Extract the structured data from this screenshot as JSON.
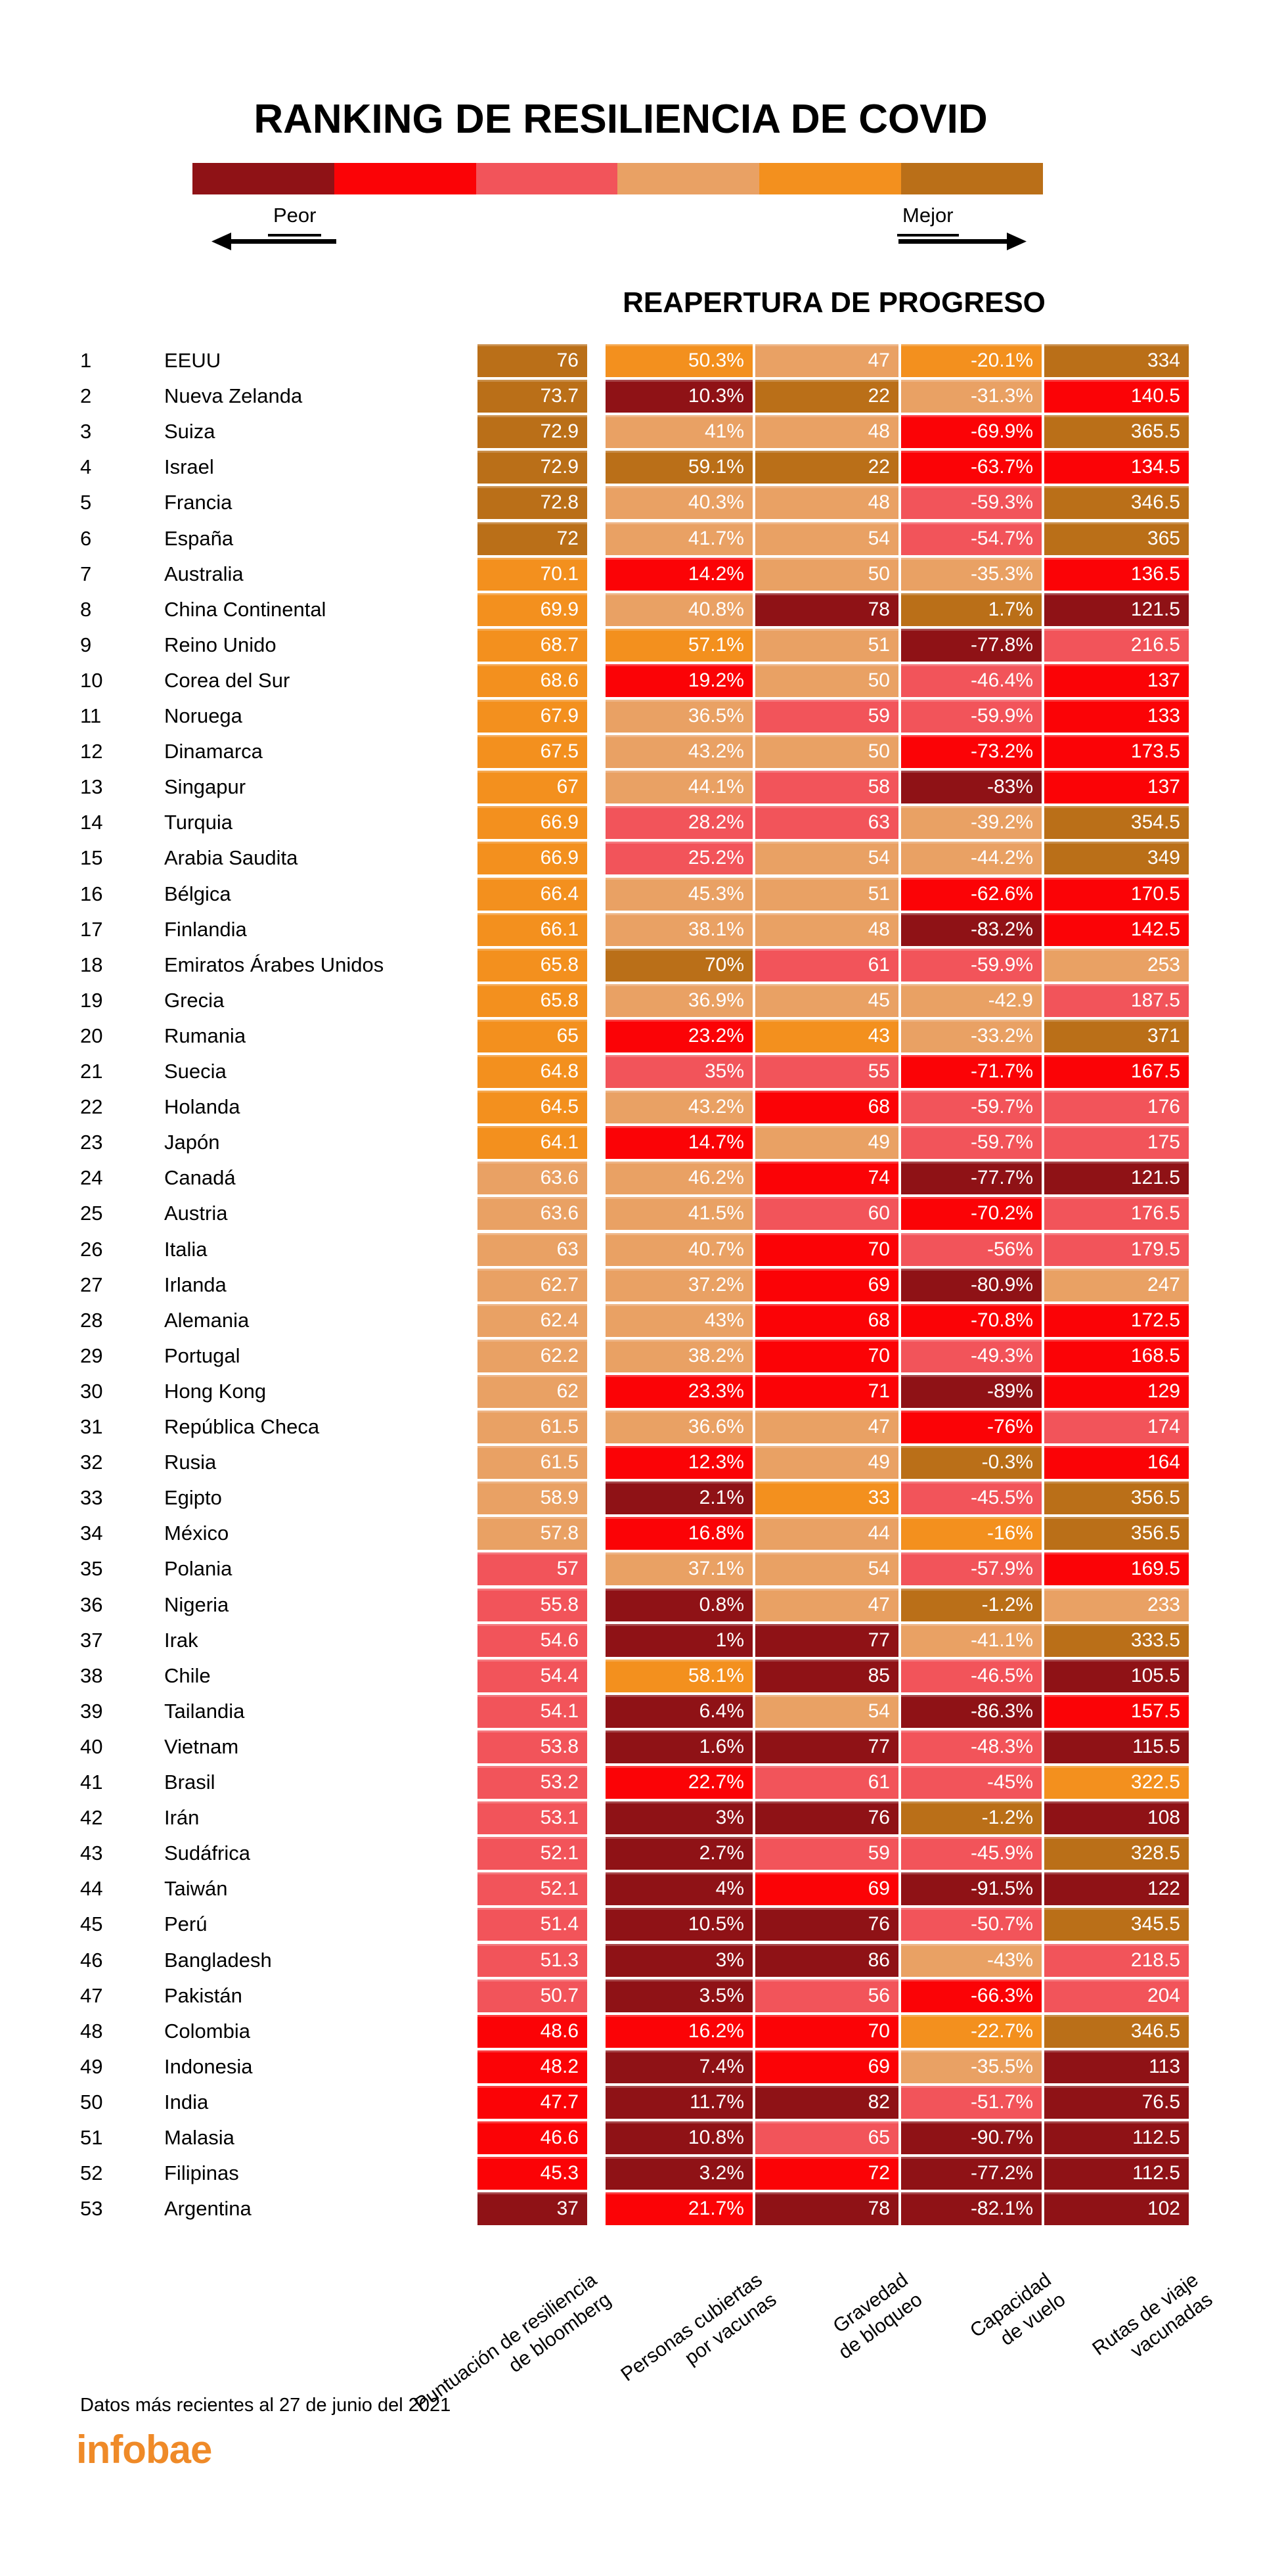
{
  "title": "RANKING DE RESILIENCIA DE COVID",
  "legend": {
    "worst_label": "Peor",
    "best_label": "Mejor"
  },
  "section_header": "REAPERTURA DE PROGRESO",
  "footer": {
    "note": "Datos más recientes al 27 de junio del 2021",
    "brand": "infobae",
    "brand_color": "#EF8A28"
  },
  "chart_data": {
    "type": "heatmap",
    "title": "RANKING DE RESILIENCIA DE COVID",
    "subtitle": "REAPERTURA DE PROGRESO",
    "palette": [
      "#8F1216",
      "#FB0306",
      "#F2545A",
      "#E9A164",
      "#F3901E",
      "#BA6F18"
    ],
    "palette_meaning": "index 0 = Peor (worst) … index 5 = Mejor (best)",
    "columns": [
      [
        "Puntuación de resiliencia",
        "de bloomberg"
      ],
      [
        "Personas cubiertas",
        "por vacunas"
      ],
      [
        "Gravedad",
        "de bloqueo"
      ],
      [
        "Capacidad",
        "de vuelo"
      ],
      [
        "Rutas de viaje",
        "vacunadas"
      ]
    ],
    "rows": [
      {
        "rank": "1",
        "country": "EEUU",
        "values": [
          "76",
          "50.3%",
          "47",
          "-20.1%",
          "334"
        ],
        "colors": [
          5,
          4,
          3,
          4,
          5
        ]
      },
      {
        "rank": "2",
        "country": "Nueva Zelanda",
        "values": [
          "73.7",
          "10.3%",
          "22",
          "-31.3%",
          "140.5"
        ],
        "colors": [
          5,
          0,
          5,
          3,
          1
        ]
      },
      {
        "rank": "3",
        "country": "Suiza",
        "values": [
          "72.9",
          "41%",
          "48",
          "-69.9%",
          "365.5"
        ],
        "colors": [
          5,
          3,
          3,
          1,
          5
        ]
      },
      {
        "rank": "4",
        "country": "Israel",
        "values": [
          "72.9",
          "59.1%",
          "22",
          "-63.7%",
          "134.5"
        ],
        "colors": [
          5,
          5,
          5,
          1,
          1
        ]
      },
      {
        "rank": "5",
        "country": "Francia",
        "values": [
          "72.8",
          "40.3%",
          "48",
          "-59.3%",
          "346.5"
        ],
        "colors": [
          5,
          3,
          3,
          2,
          5
        ]
      },
      {
        "rank": "6",
        "country": "España",
        "values": [
          "72",
          "41.7%",
          "54",
          "-54.7%",
          "365"
        ],
        "colors": [
          5,
          3,
          3,
          2,
          5
        ]
      },
      {
        "rank": "7",
        "country": "Australia",
        "values": [
          "70.1",
          "14.2%",
          "50",
          "-35.3%",
          "136.5"
        ],
        "colors": [
          4,
          1,
          3,
          3,
          1
        ]
      },
      {
        "rank": "8",
        "country": "China Continental",
        "values": [
          "69.9",
          "40.8%",
          "78",
          "1.7%",
          "121.5"
        ],
        "colors": [
          4,
          3,
          0,
          5,
          0
        ]
      },
      {
        "rank": "9",
        "country": "Reino Unido",
        "values": [
          "68.7",
          "57.1%",
          "51",
          "-77.8%",
          "216.5"
        ],
        "colors": [
          4,
          4,
          3,
          0,
          2
        ]
      },
      {
        "rank": "10",
        "country": "Corea del Sur",
        "values": [
          "68.6",
          "19.2%",
          "50",
          "-46.4%",
          "137"
        ],
        "colors": [
          4,
          1,
          3,
          2,
          1
        ]
      },
      {
        "rank": "11",
        "country": "Noruega",
        "values": [
          "67.9",
          "36.5%",
          "59",
          "-59.9%",
          "133"
        ],
        "colors": [
          4,
          3,
          2,
          2,
          1
        ]
      },
      {
        "rank": "12",
        "country": "Dinamarca",
        "values": [
          "67.5",
          "43.2%",
          "50",
          "-73.2%",
          "173.5"
        ],
        "colors": [
          4,
          3,
          3,
          1,
          1
        ]
      },
      {
        "rank": "13",
        "country": "Singapur",
        "values": [
          "67",
          "44.1%",
          "58",
          "-83%",
          "137"
        ],
        "colors": [
          4,
          3,
          2,
          0,
          1
        ]
      },
      {
        "rank": "14",
        "country": "Turquia",
        "values": [
          "66.9",
          "28.2%",
          "63",
          "-39.2%",
          "354.5"
        ],
        "colors": [
          4,
          2,
          2,
          3,
          5
        ]
      },
      {
        "rank": "15",
        "country": "Arabia Saudita",
        "values": [
          "66.9",
          "25.2%",
          "54",
          "-44.2%",
          "349"
        ],
        "colors": [
          4,
          2,
          3,
          3,
          5
        ]
      },
      {
        "rank": "16",
        "country": "Bélgica",
        "values": [
          "66.4",
          "45.3%",
          "51",
          "-62.6%",
          "170.5"
        ],
        "colors": [
          4,
          3,
          3,
          1,
          1
        ]
      },
      {
        "rank": "17",
        "country": "Finlandia",
        "values": [
          "66.1",
          "38.1%",
          "48",
          "-83.2%",
          "142.5"
        ],
        "colors": [
          4,
          3,
          3,
          0,
          1
        ]
      },
      {
        "rank": "18",
        "country": "Emiratos Árabes Unidos",
        "values": [
          "65.8",
          "70%",
          "61",
          "-59.9%",
          "253"
        ],
        "colors": [
          4,
          5,
          2,
          2,
          3
        ]
      },
      {
        "rank": "19",
        "country": "Grecia",
        "values": [
          "65.8",
          "36.9%",
          "45",
          "-42.9",
          "187.5"
        ],
        "colors": [
          4,
          3,
          3,
          3,
          2
        ]
      },
      {
        "rank": "20",
        "country": "Rumania",
        "values": [
          "65",
          "23.2%",
          "43",
          "-33.2%",
          "371"
        ],
        "colors": [
          4,
          1,
          4,
          3,
          5
        ]
      },
      {
        "rank": "21",
        "country": "Suecia",
        "values": [
          "64.8",
          "35%",
          "55",
          "-71.7%",
          "167.5"
        ],
        "colors": [
          4,
          2,
          2,
          1,
          1
        ]
      },
      {
        "rank": "22",
        "country": "Holanda",
        "values": [
          "64.5",
          "43.2%",
          "68",
          "-59.7%",
          "176"
        ],
        "colors": [
          4,
          3,
          1,
          2,
          2
        ]
      },
      {
        "rank": "23",
        "country": "Japón",
        "values": [
          "64.1",
          "14.7%",
          "49",
          "-59.7%",
          "175"
        ],
        "colors": [
          4,
          1,
          3,
          2,
          2
        ]
      },
      {
        "rank": "24",
        "country": "Canadá",
        "values": [
          "63.6",
          "46.2%",
          "74",
          "-77.7%",
          "121.5"
        ],
        "colors": [
          3,
          3,
          1,
          0,
          0
        ]
      },
      {
        "rank": "25",
        "country": "Austria",
        "values": [
          "63.6",
          "41.5%",
          "60",
          "-70.2%",
          "176.5"
        ],
        "colors": [
          3,
          3,
          2,
          1,
          2
        ]
      },
      {
        "rank": "26",
        "country": "Italia",
        "values": [
          "63",
          "40.7%",
          "70",
          "-56%",
          "179.5"
        ],
        "colors": [
          3,
          3,
          1,
          2,
          2
        ]
      },
      {
        "rank": "27",
        "country": "Irlanda",
        "values": [
          "62.7",
          "37.2%",
          "69",
          "-80.9%",
          "247"
        ],
        "colors": [
          3,
          3,
          1,
          0,
          3
        ]
      },
      {
        "rank": "28",
        "country": "Alemania",
        "values": [
          "62.4",
          "43%",
          "68",
          "-70.8%",
          "172.5"
        ],
        "colors": [
          3,
          3,
          1,
          1,
          1
        ]
      },
      {
        "rank": "29",
        "country": "Portugal",
        "values": [
          "62.2",
          "38.2%",
          "70",
          "-49.3%",
          "168.5"
        ],
        "colors": [
          3,
          3,
          1,
          2,
          1
        ]
      },
      {
        "rank": "30",
        "country": "Hong Kong",
        "values": [
          "62",
          "23.3%",
          "71",
          "-89%",
          "129"
        ],
        "colors": [
          3,
          1,
          1,
          0,
          1
        ]
      },
      {
        "rank": "31",
        "country": "República Checa",
        "values": [
          "61.5",
          "36.6%",
          "47",
          "-76%",
          "174"
        ],
        "colors": [
          3,
          3,
          3,
          1,
          2
        ]
      },
      {
        "rank": "32",
        "country": "Rusia",
        "values": [
          "61.5",
          "12.3%",
          "49",
          "-0.3%",
          "164"
        ],
        "colors": [
          3,
          1,
          3,
          5,
          1
        ]
      },
      {
        "rank": "33",
        "country": "Egipto",
        "values": [
          "58.9",
          "2.1%",
          "33",
          "-45.5%",
          "356.5"
        ],
        "colors": [
          3,
          0,
          4,
          2,
          5
        ]
      },
      {
        "rank": "34",
        "country": "México",
        "values": [
          "57.8",
          "16.8%",
          "44",
          "-16%",
          "356.5"
        ],
        "colors": [
          3,
          1,
          3,
          4,
          5
        ]
      },
      {
        "rank": "35",
        "country": "Polania",
        "values": [
          "57",
          "37.1%",
          "54",
          "-57.9%",
          "169.5"
        ],
        "colors": [
          2,
          3,
          3,
          2,
          1
        ]
      },
      {
        "rank": "36",
        "country": "Nigeria",
        "values": [
          "55.8",
          "0.8%",
          "47",
          "-1.2%",
          "233"
        ],
        "colors": [
          2,
          0,
          3,
          5,
          3
        ]
      },
      {
        "rank": "37",
        "country": "Irak",
        "values": [
          "54.6",
          "1%",
          "77",
          "-41.1%",
          "333.5"
        ],
        "colors": [
          2,
          0,
          0,
          3,
          5
        ]
      },
      {
        "rank": "38",
        "country": "Chile",
        "values": [
          "54.4",
          "58.1%",
          "85",
          "-46.5%",
          "105.5"
        ],
        "colors": [
          2,
          4,
          0,
          2,
          0
        ]
      },
      {
        "rank": "39",
        "country": "Tailandia",
        "values": [
          "54.1",
          "6.4%",
          "54",
          "-86.3%",
          "157.5"
        ],
        "colors": [
          2,
          0,
          3,
          0,
          1
        ]
      },
      {
        "rank": "40",
        "country": "Vietnam",
        "values": [
          "53.8",
          "1.6%",
          "77",
          "-48.3%",
          "115.5"
        ],
        "colors": [
          2,
          0,
          0,
          2,
          0
        ]
      },
      {
        "rank": "41",
        "country": "Brasil",
        "values": [
          "53.2",
          "22.7%",
          "61",
          "-45%",
          "322.5"
        ],
        "colors": [
          2,
          1,
          2,
          2,
          4
        ]
      },
      {
        "rank": "42",
        "country": "Irán",
        "values": [
          "53.1",
          "3%",
          "76",
          "-1.2%",
          "108"
        ],
        "colors": [
          2,
          0,
          0,
          5,
          0
        ]
      },
      {
        "rank": "43",
        "country": "Sudáfrica",
        "values": [
          "52.1",
          "2.7%",
          "59",
          "-45.9%",
          "328.5"
        ],
        "colors": [
          2,
          0,
          2,
          2,
          5
        ]
      },
      {
        "rank": "44",
        "country": "Taiwán",
        "values": [
          "52.1",
          "4%",
          "69",
          "-91.5%",
          "122"
        ],
        "colors": [
          2,
          0,
          1,
          0,
          0
        ]
      },
      {
        "rank": "45",
        "country": "Perú",
        "values": [
          "51.4",
          "10.5%",
          "76",
          "-50.7%",
          "345.5"
        ],
        "colors": [
          2,
          0,
          0,
          2,
          5
        ]
      },
      {
        "rank": "46",
        "country": "Bangladesh",
        "values": [
          "51.3",
          "3%",
          "86",
          "-43%",
          "218.5"
        ],
        "colors": [
          2,
          0,
          0,
          3,
          2
        ]
      },
      {
        "rank": "47",
        "country": "Pakistán",
        "values": [
          "50.7",
          "3.5%",
          "56",
          "-66.3%",
          "204"
        ],
        "colors": [
          2,
          0,
          2,
          1,
          2
        ]
      },
      {
        "rank": "48",
        "country": "Colombia",
        "values": [
          "48.6",
          "16.2%",
          "70",
          "-22.7%",
          "346.5"
        ],
        "colors": [
          1,
          1,
          1,
          4,
          5
        ]
      },
      {
        "rank": "49",
        "country": "Indonesia",
        "values": [
          "48.2",
          "7.4%",
          "69",
          "-35.5%",
          "113"
        ],
        "colors": [
          1,
          0,
          1,
          3,
          0
        ]
      },
      {
        "rank": "50",
        "country": "India",
        "values": [
          "47.7",
          "11.7%",
          "82",
          "-51.7%",
          "76.5"
        ],
        "colors": [
          1,
          0,
          0,
          2,
          0
        ]
      },
      {
        "rank": "51",
        "country": "Malasia",
        "values": [
          "46.6",
          "10.8%",
          "65",
          "-90.7%",
          "112.5"
        ],
        "colors": [
          1,
          0,
          2,
          0,
          0
        ]
      },
      {
        "rank": "52",
        "country": "Filipinas",
        "values": [
          "45.3",
          "3.2%",
          "72",
          "-77.2%",
          "112.5"
        ],
        "colors": [
          1,
          0,
          1,
          0,
          0
        ]
      },
      {
        "rank": "53",
        "country": "Argentina",
        "values": [
          "37",
          "21.7%",
          "78",
          "-82.1%",
          "102"
        ],
        "colors": [
          0,
          1,
          0,
          0,
          0
        ]
      }
    ]
  }
}
